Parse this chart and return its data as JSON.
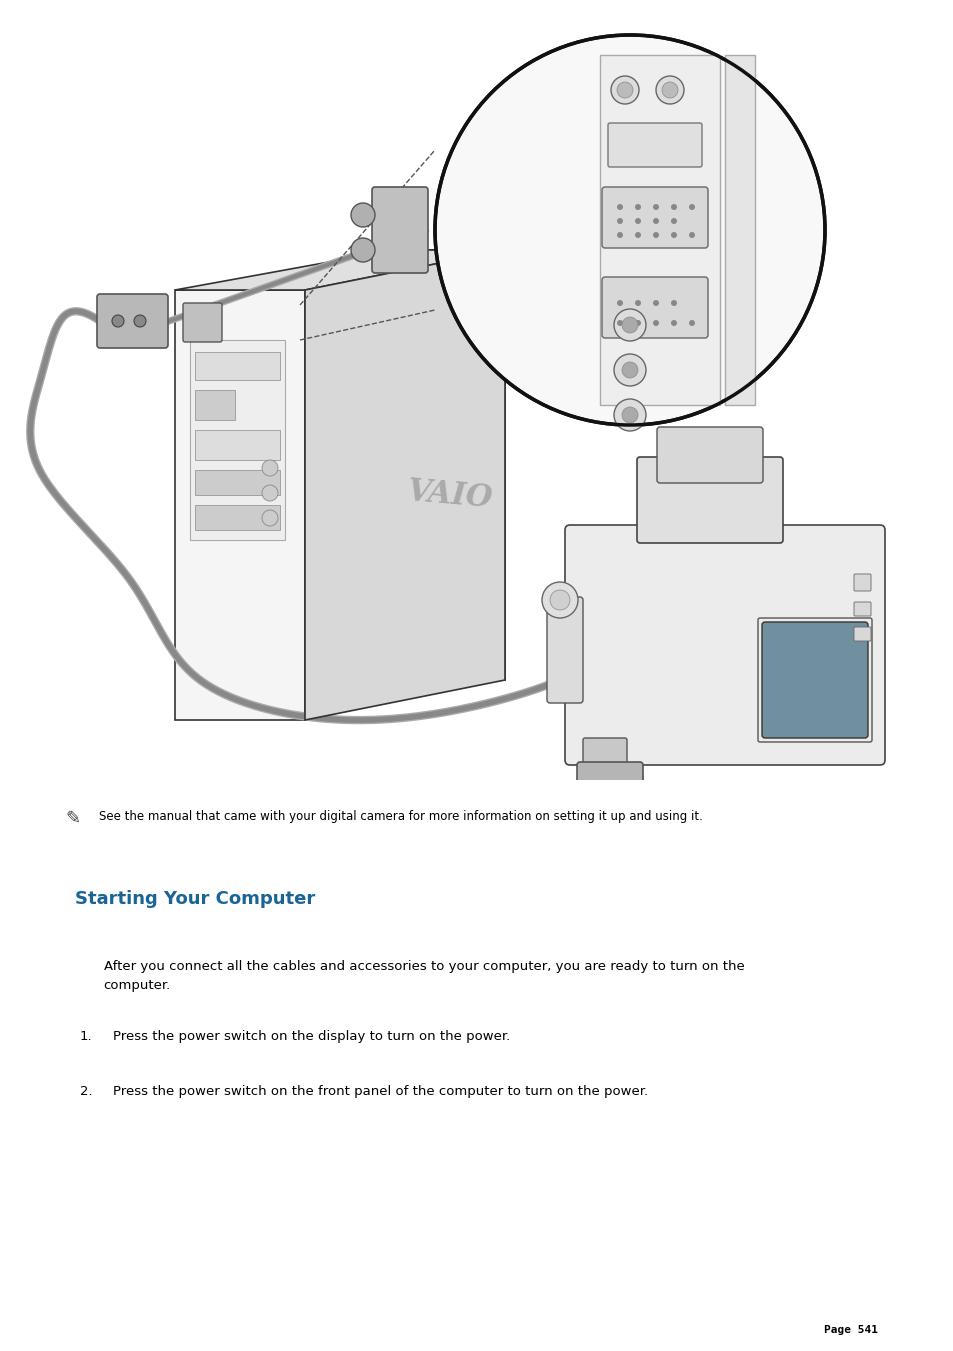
{
  "bg_color": "#ffffff",
  "page_width": 9.54,
  "page_height": 13.51,
  "section_title": "Starting Your Computer",
  "section_title_color": "#1a6496",
  "note_text": "  See the manual that came with your digital camera for more information on setting it up and using it.",
  "note_fontsize": 8.5,
  "paragraph_text": "After you connect all the cables and accessories to your computer, you are ready to turn on the\ncomputer.",
  "paragraph_fontsize": 9.5,
  "item1_num": "1.",
  "item1_text": "Press the power switch on the display to turn on the power.",
  "item2_num": "2.",
  "item2_text": "Press the power switch on the front panel of the computer to turn on the power.",
  "body_fontsize": 9.5,
  "section_title_fontsize": 13,
  "page_label": "Page 541",
  "page_label_fontsize": 8,
  "text_color": "#000000",
  "line_color": "#333333",
  "light_gray": "#e8e8e8",
  "mid_gray": "#cccccc",
  "dark_gray": "#888888"
}
